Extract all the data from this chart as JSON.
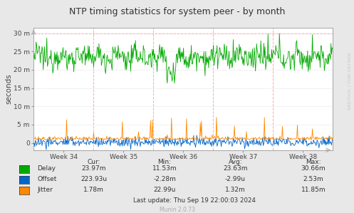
{
  "title": "NTP timing statistics for system peer - by month",
  "ylabel": "seconds",
  "bg_color": "#e8e8e8",
  "plot_bg": "#ffffff",
  "colors": {
    "delay": "#00aa00",
    "offset": "#0066cc",
    "jitter": "#ff8800"
  },
  "y_tick_vals": [
    0.0,
    0.005,
    0.01,
    0.015,
    0.02,
    0.025,
    0.03
  ],
  "y_tick_labels": [
    "0",
    "5 m",
    "10 m",
    "15 m",
    "20 m",
    "25 m",
    "30 m"
  ],
  "x_tick_labels": [
    "Week 34",
    "Week 35",
    "Week 36",
    "Week 37",
    "Week 38"
  ],
  "watermark": "RRDTOOL / TOBI OETIKER",
  "munin_label": "Munin 2.0.73",
  "legend": {
    "Delay": {
      "cur": "23.97m",
      "min": "11.53m",
      "avg": "23.63m",
      "max": "30.66m"
    },
    "Offset": {
      "cur": "223.93u",
      "min": "-2.28m",
      "avg": "-2.99u",
      "max": "2.53m"
    },
    "Jitter": {
      "cur": "1.78m",
      "min": "22.99u",
      "avg": "1.32m",
      "max": "11.85m"
    }
  },
  "last_update": "Last update: Thu Sep 19 22:00:03 2024",
  "n_points": 500,
  "ylim_min": -0.002,
  "ylim_max": 0.0315
}
